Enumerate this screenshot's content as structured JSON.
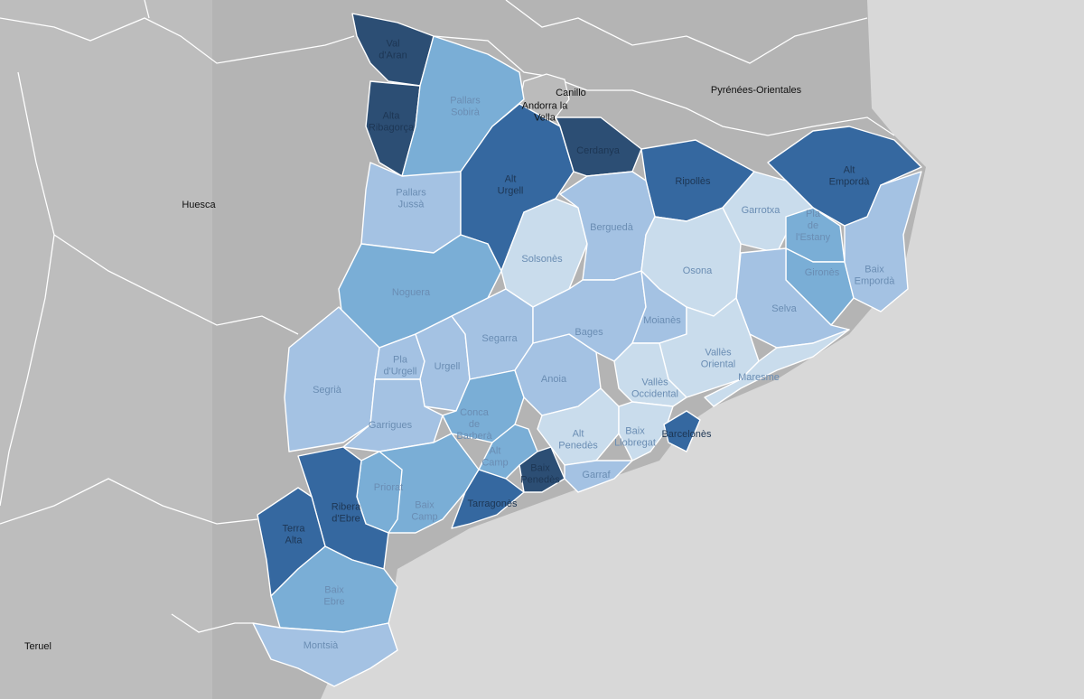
{
  "map": {
    "places": [
      {
        "lines": [
          "Huesca"
        ]
      },
      {
        "lines": [
          "Teruel"
        ]
      },
      {
        "lines": [
          "Pyrénées-Orientales"
        ]
      },
      {
        "lines": [
          "Canillo"
        ]
      },
      {
        "lines": [
          "Andorra la",
          "Vella"
        ]
      }
    ],
    "regions": [
      {
        "lines": [
          "Val",
          "d'Aran"
        ],
        "color": "#2c4e74"
      },
      {
        "lines": [
          "Alta",
          "Ribagorça"
        ],
        "color": "#2c4e74"
      },
      {
        "lines": [
          "Pallars",
          "Sobirà"
        ],
        "color": "#7aaed6"
      },
      {
        "lines": [
          "Pallars",
          "Jussà"
        ],
        "color": "#a4c2e3"
      },
      {
        "lines": [
          "Alt",
          "Urgell"
        ],
        "color": "#3568a0"
      },
      {
        "lines": [
          "Cerdanya"
        ],
        "color": "#2c4e74"
      },
      {
        "lines": [
          "Ripollès"
        ],
        "color": "#3568a0"
      },
      {
        "lines": [
          "Alt",
          "Empordà"
        ],
        "color": "#3568a0"
      },
      {
        "lines": [
          "Garrotxa"
        ],
        "color": "#c9dcec"
      },
      {
        "lines": [
          "Pla",
          "de",
          "l'Estany"
        ],
        "color": "#7aaed6"
      },
      {
        "lines": [
          "Gironès"
        ],
        "color": "#7aaed6"
      },
      {
        "lines": [
          "Baix",
          "Empordà"
        ],
        "color": "#a4c2e3"
      },
      {
        "lines": [
          "Selva"
        ],
        "color": "#a4c2e3"
      },
      {
        "lines": [
          "Solsonès"
        ],
        "color": "#c9dcec"
      },
      {
        "lines": [
          "Berguedà"
        ],
        "color": "#a4c2e3"
      },
      {
        "lines": [
          "Osona"
        ],
        "color": "#c9dcec"
      },
      {
        "lines": [
          "Noguera"
        ],
        "color": "#7aaed6"
      },
      {
        "lines": [
          "Segrià"
        ],
        "color": "#a4c2e3"
      },
      {
        "lines": [
          "Pla",
          "d'Urgell"
        ],
        "color": "#a4c2e3"
      },
      {
        "lines": [
          "Urgell"
        ],
        "color": "#a4c2e3"
      },
      {
        "lines": [
          "Segarra"
        ],
        "color": "#a4c2e3"
      },
      {
        "lines": [
          "Garrigues"
        ],
        "color": "#a4c2e3"
      },
      {
        "lines": [
          "Conca",
          "de",
          "Barberà"
        ],
        "color": "#7aaed6"
      },
      {
        "lines": [
          "Alt",
          "Camp"
        ],
        "color": "#7aaed6"
      },
      {
        "lines": [
          "Baix",
          "Camp"
        ],
        "color": "#7aaed6"
      },
      {
        "lines": [
          "Priorat"
        ],
        "color": "#7aaed6"
      },
      {
        "lines": [
          "Ribera",
          "d'Ebre"
        ],
        "color": "#3568a0"
      },
      {
        "lines": [
          "Terra",
          "Alta"
        ],
        "color": "#3568a0"
      },
      {
        "lines": [
          "Baix",
          "Ebre"
        ],
        "color": "#7aaed6"
      },
      {
        "lines": [
          "Montsià"
        ],
        "color": "#a4c2e3"
      },
      {
        "lines": [
          "Tarragonès"
        ],
        "color": "#3568a0"
      },
      {
        "lines": [
          "Baix",
          "Penedès"
        ],
        "color": "#2c4e74"
      },
      {
        "lines": [
          "Anoia"
        ],
        "color": "#a4c2e3"
      },
      {
        "lines": [
          "Bages"
        ],
        "color": "#a4c2e3"
      },
      {
        "lines": [
          "Moianès"
        ],
        "color": "#a4c2e3"
      },
      {
        "lines": [
          "Vallès",
          "Oriental"
        ],
        "color": "#c9dcec"
      },
      {
        "lines": [
          "Maresme"
        ],
        "color": "#c9dcec"
      },
      {
        "lines": [
          "Vallès",
          "Occidental"
        ],
        "color": "#c9dcec"
      },
      {
        "lines": [
          "Alt",
          "Penedès"
        ],
        "color": "#c9dcec"
      },
      {
        "lines": [
          "Baix",
          "Llobregat"
        ],
        "color": "#c9dcec"
      },
      {
        "lines": [
          "Barcelonès"
        ],
        "color": "#3568a0"
      },
      {
        "lines": [
          "Garraf"
        ],
        "color": "#a4c2e3"
      }
    ]
  }
}
